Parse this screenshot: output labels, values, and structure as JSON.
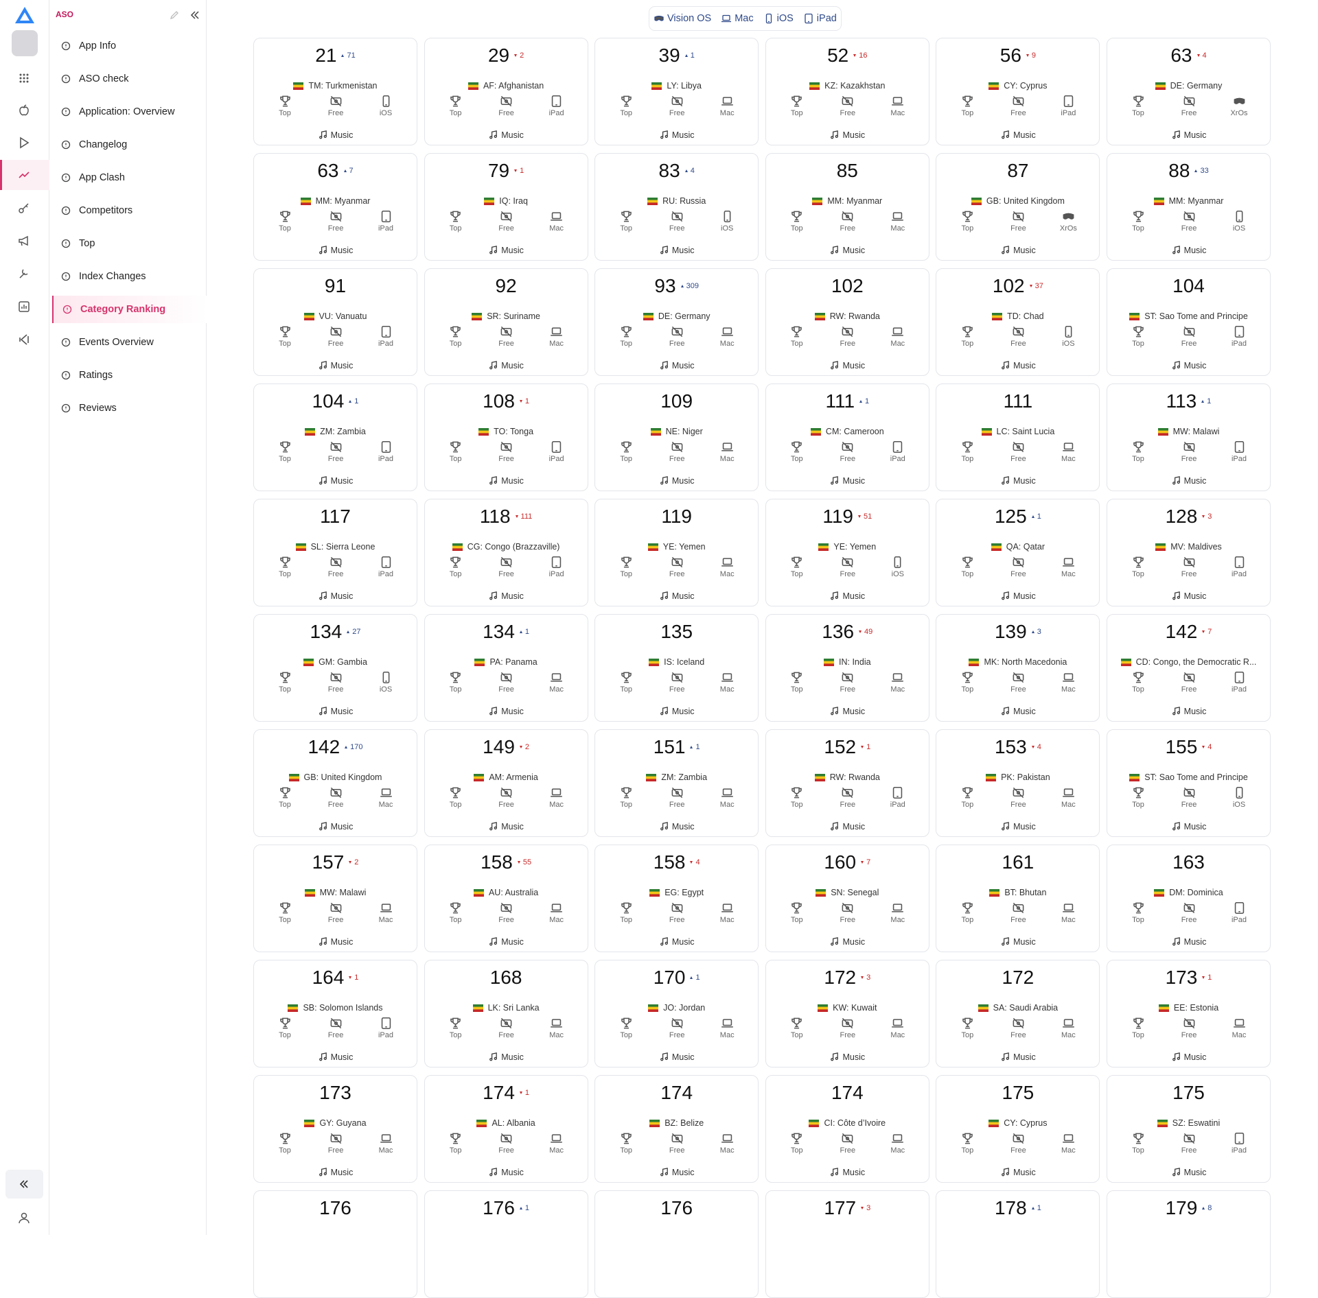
{
  "sidebar": {
    "brand": "ASO",
    "active": 8,
    "nav": [
      "App Info",
      "ASO check",
      "Application: Overview",
      "Changelog",
      "App Clash",
      "Competitors",
      "Top",
      "Index Changes",
      "Category Ranking",
      "Events Overview",
      "Ratings",
      "Reviews"
    ]
  },
  "platform_tabs": [
    "Vision OS",
    "Mac",
    "iOS",
    "iPad"
  ],
  "card_labels": {
    "top": "Top",
    "free": "Free",
    "category": "Music"
  },
  "cards": [
    {
      "rank": 21,
      "change": 71,
      "trend": "up",
      "country": "TM: Turkmenistan",
      "device": "iOS"
    },
    {
      "rank": 29,
      "change": 2,
      "trend": "down",
      "country": "AF: Afghanistan",
      "device": "iPad"
    },
    {
      "rank": 39,
      "change": 1,
      "trend": "up",
      "country": "LY: Libya",
      "device": "Mac"
    },
    {
      "rank": 52,
      "change": 16,
      "trend": "down",
      "country": "KZ: Kazakhstan",
      "device": "Mac"
    },
    {
      "rank": 56,
      "change": 9,
      "trend": "down",
      "country": "CY: Cyprus",
      "device": "iPad"
    },
    {
      "rank": 63,
      "change": 4,
      "trend": "down",
      "country": "DE: Germany",
      "device": "XrOs"
    },
    {
      "rank": 63,
      "change": 7,
      "trend": "up",
      "country": "MM: Myanmar",
      "device": "iPad"
    },
    {
      "rank": 79,
      "change": 1,
      "trend": "down",
      "country": "IQ: Iraq",
      "device": "Mac"
    },
    {
      "rank": 83,
      "change": 4,
      "trend": "up",
      "country": "RU: Russia",
      "device": "iOS"
    },
    {
      "rank": 85,
      "country": "MM: Myanmar",
      "device": "Mac"
    },
    {
      "rank": 87,
      "country": "GB: United Kingdom",
      "device": "XrOs"
    },
    {
      "rank": 88,
      "change": 33,
      "trend": "up",
      "country": "MM: Myanmar",
      "device": "iOS"
    },
    {
      "rank": 91,
      "country": "VU: Vanuatu",
      "device": "iPad"
    },
    {
      "rank": 92,
      "country": "SR: Suriname",
      "device": "Mac"
    },
    {
      "rank": 93,
      "change": 309,
      "trend": "up",
      "country": "DE: Germany",
      "device": "Mac"
    },
    {
      "rank": 102,
      "country": "RW: Rwanda",
      "device": "Mac"
    },
    {
      "rank": 102,
      "change": 37,
      "trend": "down",
      "country": "TD: Chad",
      "device": "iOS"
    },
    {
      "rank": 104,
      "country": "ST: Sao Tome and Principe",
      "device": "iPad"
    },
    {
      "rank": 104,
      "change": 1,
      "trend": "up",
      "country": "ZM: Zambia",
      "device": "iPad"
    },
    {
      "rank": 108,
      "change": 1,
      "trend": "down",
      "country": "TO: Tonga",
      "device": "iPad"
    },
    {
      "rank": 109,
      "country": "NE: Niger",
      "device": "Mac"
    },
    {
      "rank": 111,
      "change": 1,
      "trend": "up",
      "country": "CM: Cameroon",
      "device": "iPad"
    },
    {
      "rank": 111,
      "country": "LC: Saint Lucia",
      "device": "Mac"
    },
    {
      "rank": 113,
      "change": 1,
      "trend": "up",
      "country": "MW: Malawi",
      "device": "iPad"
    },
    {
      "rank": 117,
      "country": "SL: Sierra Leone",
      "device": "iPad"
    },
    {
      "rank": 118,
      "change": 111,
      "trend": "down",
      "country": "CG: Congo (Brazzaville)",
      "device": "iPad"
    },
    {
      "rank": 119,
      "country": "YE: Yemen",
      "device": "Mac"
    },
    {
      "rank": 119,
      "change": 51,
      "trend": "down",
      "country": "YE: Yemen",
      "device": "iOS"
    },
    {
      "rank": 125,
      "change": 1,
      "trend": "up",
      "country": "QA: Qatar",
      "device": "Mac"
    },
    {
      "rank": 128,
      "change": 3,
      "trend": "down",
      "country": "MV: Maldives",
      "device": "iPad"
    },
    {
      "rank": 134,
      "change": 27,
      "trend": "up",
      "country": "GM: Gambia",
      "device": "iOS"
    },
    {
      "rank": 134,
      "change": 1,
      "trend": "up",
      "country": "PA: Panama",
      "device": "Mac"
    },
    {
      "rank": 135,
      "country": "IS: Iceland",
      "device": "Mac"
    },
    {
      "rank": 136,
      "change": 49,
      "trend": "down",
      "country": "IN: India",
      "device": "Mac"
    },
    {
      "rank": 139,
      "change": 3,
      "trend": "up",
      "country": "MK: North Macedonia",
      "device": "Mac"
    },
    {
      "rank": 142,
      "change": 7,
      "trend": "down",
      "country": "CD: Congo, the Democratic R...",
      "device": "iPad"
    },
    {
      "rank": 142,
      "change": 170,
      "trend": "up",
      "country": "GB: United Kingdom",
      "device": "Mac"
    },
    {
      "rank": 149,
      "change": 2,
      "trend": "down",
      "country": "AM: Armenia",
      "device": "Mac"
    },
    {
      "rank": 151,
      "change": 1,
      "trend": "up",
      "country": "ZM: Zambia",
      "device": "Mac"
    },
    {
      "rank": 152,
      "change": 1,
      "trend": "down",
      "country": "RW: Rwanda",
      "device": "iPad"
    },
    {
      "rank": 153,
      "change": 4,
      "trend": "down",
      "country": "PK: Pakistan",
      "device": "Mac"
    },
    {
      "rank": 155,
      "change": 4,
      "trend": "down",
      "country": "ST: Sao Tome and Principe",
      "device": "iOS"
    },
    {
      "rank": 157,
      "change": 2,
      "trend": "down",
      "country": "MW: Malawi",
      "device": "Mac"
    },
    {
      "rank": 158,
      "change": 55,
      "trend": "down",
      "country": "AU: Australia",
      "device": "Mac"
    },
    {
      "rank": 158,
      "change": 4,
      "trend": "down",
      "country": "EG: Egypt",
      "device": "Mac"
    },
    {
      "rank": 160,
      "change": 7,
      "trend": "down",
      "country": "SN: Senegal",
      "device": "Mac"
    },
    {
      "rank": 161,
      "country": "BT: Bhutan",
      "device": "Mac"
    },
    {
      "rank": 163,
      "country": "DM: Dominica",
      "device": "iPad"
    },
    {
      "rank": 164,
      "change": 1,
      "trend": "down",
      "country": "SB: Solomon Islands",
      "device": "iPad"
    },
    {
      "rank": 168,
      "country": "LK: Sri Lanka",
      "device": "Mac"
    },
    {
      "rank": 170,
      "change": 1,
      "trend": "up",
      "country": "JO: Jordan",
      "device": "Mac"
    },
    {
      "rank": 172,
      "change": 3,
      "trend": "down",
      "country": "KW: Kuwait",
      "device": "Mac"
    },
    {
      "rank": 172,
      "country": "SA: Saudi Arabia",
      "device": "Mac"
    },
    {
      "rank": 173,
      "change": 1,
      "trend": "down",
      "country": "EE: Estonia",
      "device": "Mac"
    },
    {
      "rank": 173,
      "country": "GY: Guyana",
      "device": "Mac"
    },
    {
      "rank": 174,
      "change": 1,
      "trend": "down",
      "country": "AL: Albania",
      "device": "Mac"
    },
    {
      "rank": 174,
      "country": "BZ: Belize",
      "device": "Mac"
    },
    {
      "rank": 174,
      "country": "CI: Côte d’Ivoire",
      "device": "Mac"
    },
    {
      "rank": 175,
      "country": "CY: Cyprus",
      "device": "Mac"
    },
    {
      "rank": 175,
      "country": "SZ: Eswatini",
      "device": "iPad"
    },
    {
      "rank": 176
    },
    {
      "rank": 176,
      "change": 1,
      "trend": "up"
    },
    {
      "rank": 176
    },
    {
      "rank": 177,
      "change": 3,
      "trend": "down"
    },
    {
      "rank": 178,
      "change": 1,
      "trend": "up"
    },
    {
      "rank": 179,
      "change": 8,
      "trend": "up"
    }
  ]
}
